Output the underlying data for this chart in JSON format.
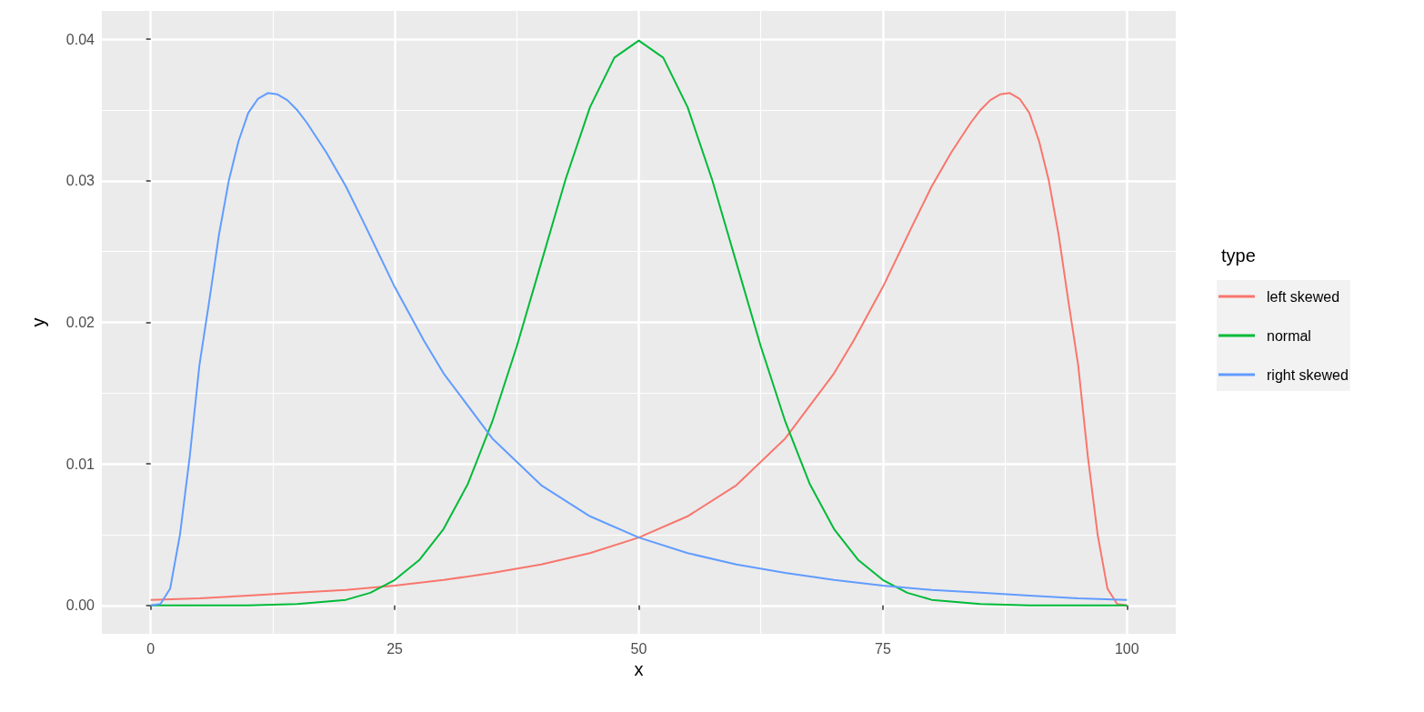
{
  "chart_data": {
    "type": "line",
    "xlabel": "x",
    "ylabel": "y",
    "legend_title": "type",
    "legend": "right",
    "grid": true,
    "marker": "none",
    "xlim": [
      -5,
      105
    ],
    "ylim": [
      -0.002,
      0.042
    ],
    "xticks": [
      0,
      25,
      50,
      75,
      100
    ],
    "yticks": [
      {
        "value": 0,
        "label": "0.00"
      },
      {
        "value": 0.01,
        "label": "0.01"
      },
      {
        "value": 0.02,
        "label": "0.02"
      },
      {
        "value": 0.03,
        "label": "0.03"
      },
      {
        "value": 0.04,
        "label": "0.04"
      }
    ],
    "series": [
      {
        "name": "left skewed",
        "color": "#f8766d",
        "x": [
          0,
          5,
          10,
          15,
          20,
          25,
          30,
          35,
          40,
          45,
          50,
          55,
          60,
          65,
          70,
          72,
          75,
          78,
          80,
          82,
          84,
          85,
          86,
          87,
          88,
          89,
          90,
          91,
          92,
          93,
          94,
          95,
          96,
          97,
          98,
          99,
          100
        ],
        "values": [
          0.0004,
          0.0005,
          0.0007,
          0.0009,
          0.0011,
          0.0014,
          0.0018,
          0.0023,
          0.0029,
          0.0037,
          0.0048,
          0.0063,
          0.0085,
          0.0118,
          0.0164,
          0.0187,
          0.0225,
          0.0268,
          0.0296,
          0.032,
          0.0341,
          0.035,
          0.0357,
          0.0361,
          0.0362,
          0.0358,
          0.0348,
          0.0328,
          0.03,
          0.0262,
          0.0215,
          0.017,
          0.0105,
          0.005,
          0.0012,
          0.0001,
          0
        ]
      },
      {
        "name": "normal",
        "color": "#00ba38",
        "x": [
          0,
          10,
          15,
          20,
          22.5,
          25,
          27.5,
          30,
          32.5,
          35,
          37.5,
          40,
          42.5,
          45,
          47.5,
          50,
          52.5,
          55,
          57.5,
          60,
          62.5,
          65,
          67.5,
          70,
          72.5,
          75,
          77.5,
          80,
          85,
          90,
          100
        ],
        "values": [
          0,
          0,
          0.0001,
          0.0004,
          0.0009,
          0.0018,
          0.0032,
          0.0054,
          0.0086,
          0.013,
          0.0183,
          0.0242,
          0.0301,
          0.0352,
          0.0387,
          0.0399,
          0.0387,
          0.0352,
          0.0301,
          0.0242,
          0.0183,
          0.013,
          0.0086,
          0.0054,
          0.0032,
          0.0018,
          0.0009,
          0.0004,
          0.0001,
          0,
          0
        ]
      },
      {
        "name": "right skewed",
        "color": "#619cff",
        "x": [
          0,
          1,
          2,
          3,
          4,
          5,
          6,
          7,
          8,
          9,
          10,
          11,
          12,
          13,
          14,
          15,
          16,
          18,
          20,
          22,
          25,
          28,
          30,
          35,
          40,
          45,
          50,
          55,
          60,
          65,
          70,
          75,
          80,
          85,
          90,
          95,
          100
        ],
        "values": [
          0,
          0.0001,
          0.0012,
          0.005,
          0.0105,
          0.017,
          0.0215,
          0.0262,
          0.03,
          0.0328,
          0.0348,
          0.0358,
          0.0362,
          0.0361,
          0.0357,
          0.035,
          0.0341,
          0.032,
          0.0296,
          0.0268,
          0.0225,
          0.0187,
          0.0164,
          0.0118,
          0.0085,
          0.0063,
          0.0048,
          0.0037,
          0.0029,
          0.0023,
          0.0018,
          0.0014,
          0.0011,
          0.0009,
          0.0007,
          0.0005,
          0.0004
        ]
      }
    ]
  }
}
